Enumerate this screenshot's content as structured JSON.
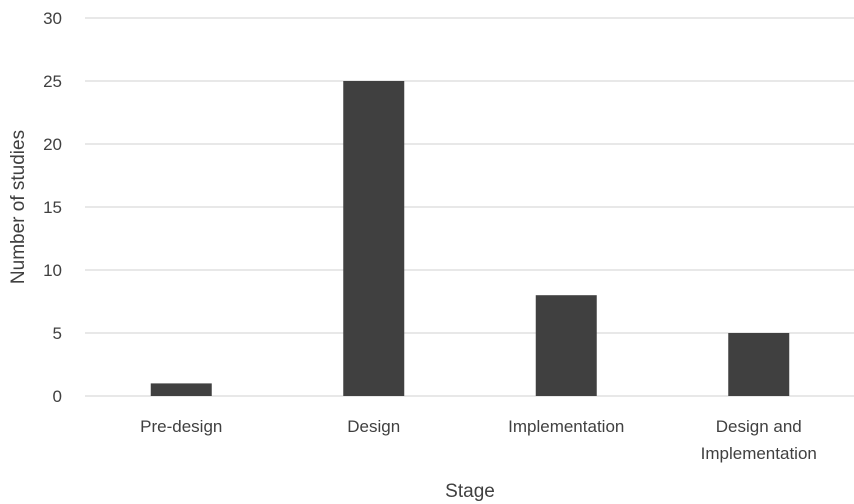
{
  "chart_data": {
    "type": "bar",
    "categories": [
      "Pre-design",
      "Design",
      "Implementation",
      "Design and Implementation"
    ],
    "category_lines": [
      [
        "Pre-design"
      ],
      [
        "Design"
      ],
      [
        "Implementation"
      ],
      [
        "Design and",
        "Implementation"
      ]
    ],
    "values": [
      1,
      25,
      8,
      5
    ],
    "xlabel": "Stage",
    "ylabel": "Number of studies",
    "ylim": [
      0,
      30
    ],
    "yticks": [
      0,
      5,
      10,
      15,
      20,
      25,
      30
    ],
    "grid": true,
    "bar_color": "#404040",
    "grid_color": "#d9d9d9",
    "text_color": "#404040"
  }
}
